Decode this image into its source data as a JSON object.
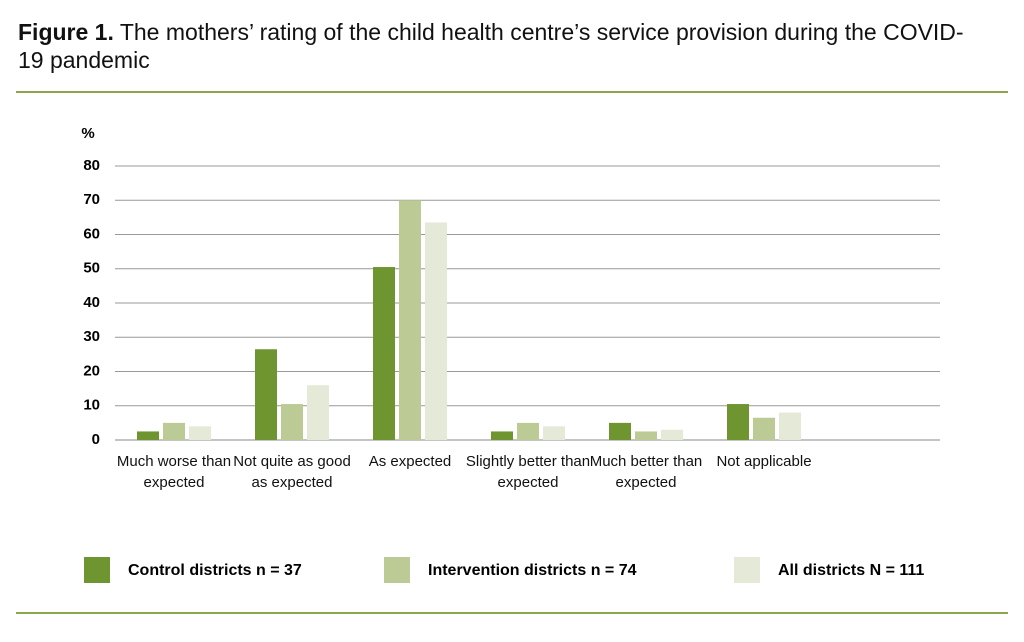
{
  "chart_data": {
    "type": "bar",
    "title_label": "Figure 1.",
    "title": "The mothers’ rating of the child health centre’s service provision during the COVID-19 pandemic",
    "y_label": "%",
    "categories": [
      "Much worse than expected",
      "Not quite as good as expected",
      "As expected",
      "Slightly better than expected",
      "Much better than expected",
      "Not applicable"
    ],
    "series": [
      {
        "name": "Control districts n = 37",
        "color": "#6f9530",
        "values": [
          2.5,
          26.5,
          50.5,
          2.5,
          5,
          10.5
        ]
      },
      {
        "name": "Intervention districts n = 74",
        "color": "#bccb96",
        "values": [
          5,
          10.5,
          70,
          5,
          2.5,
          6.5
        ]
      },
      {
        "name": "All districts N = 111",
        "color": "#e5e9d8",
        "values": [
          4,
          16,
          63.5,
          4,
          3,
          8
        ]
      }
    ],
    "ylim": [
      0,
      80
    ],
    "yticks": [
      0,
      10,
      20,
      30,
      40,
      50,
      60,
      70,
      80
    ],
    "grid": true,
    "legend": "bottom"
  }
}
